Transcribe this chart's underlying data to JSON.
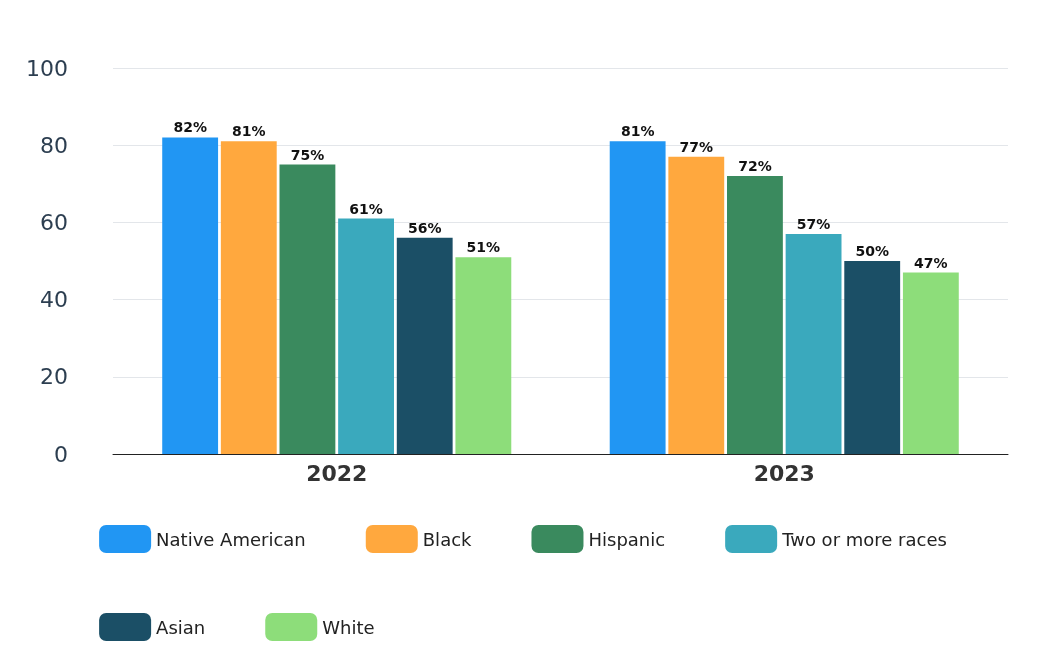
{
  "chart_data": {
    "type": "bar",
    "categories": [
      "2022",
      "2023"
    ],
    "series": [
      {
        "name": "Native American",
        "color": "#2196f3",
        "values": [
          82,
          81
        ],
        "value_labels": [
          "82%",
          "81%"
        ]
      },
      {
        "name": "Black",
        "color": "#ffa83e",
        "values": [
          81,
          77
        ],
        "value_labels": [
          "81%",
          "77%"
        ]
      },
      {
        "name": "Hispanic",
        "color": "#3a8a5e",
        "values": [
          75,
          72
        ],
        "value_labels": [
          "75%",
          "72%"
        ]
      },
      {
        "name": "Two or more races",
        "color": "#3aa9bd",
        "values": [
          61,
          57
        ],
        "value_labels": [
          "61%",
          "57%"
        ]
      },
      {
        "name": "Asian",
        "color": "#1b4f66",
        "values": [
          56,
          50
        ],
        "value_labels": [
          "56%",
          "50%"
        ]
      },
      {
        "name": "White",
        "color": "#8ddd7a",
        "values": [
          51,
          47
        ],
        "value_labels": [
          "51%",
          "47%"
        ]
      }
    ],
    "ylim": [
      0,
      100
    ],
    "yticks": [
      0,
      20,
      40,
      60,
      80,
      100
    ],
    "grid": "y",
    "legend": "bottom"
  }
}
